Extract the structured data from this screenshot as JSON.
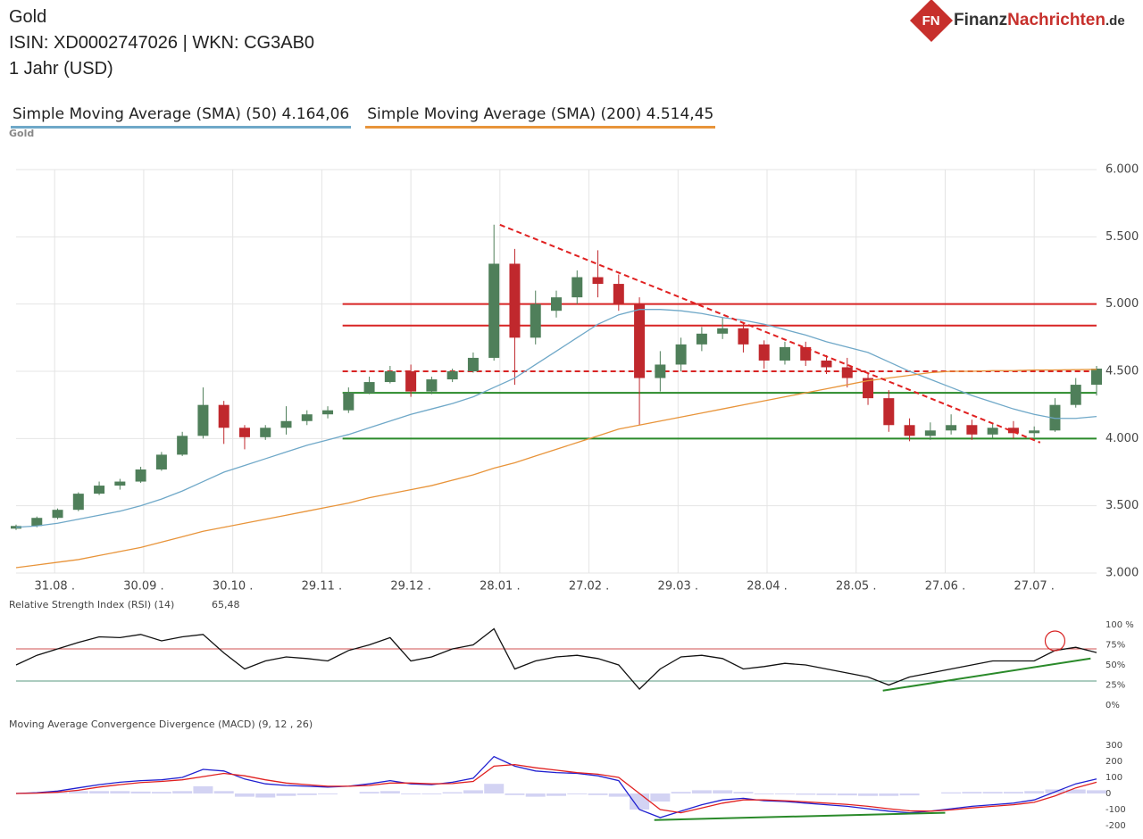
{
  "header": {
    "title": "Gold",
    "isin": "ISIN: XD0002747026  | WKN: CG3AB0",
    "period": "1 Jahr (USD)"
  },
  "logo": {
    "badge": "FN",
    "part1": "Finanz",
    "part2": "Nachrichten",
    "part3": ".de"
  },
  "chart_data": [
    {
      "type": "candlestick",
      "title": "Gold",
      "grid": true,
      "xlim": [
        0,
        364
      ],
      "xticks": [
        {
          "value": 13,
          "label": "31.08 ."
        },
        {
          "value": 43,
          "label": "30.09 ."
        },
        {
          "value": 73,
          "label": "30.10 ."
        },
        {
          "value": 103,
          "label": "29.11 ."
        },
        {
          "value": 133,
          "label": "29.12 ."
        },
        {
          "value": 163,
          "label": "28.01 ."
        },
        {
          "value": 193,
          "label": "27.02 ."
        },
        {
          "value": 223,
          "label": "29.03 ."
        },
        {
          "value": 253,
          "label": "28.04 ."
        },
        {
          "value": 283,
          "label": "28.05 ."
        },
        {
          "value": 313,
          "label": "27.06 ."
        },
        {
          "value": 343,
          "label": "27.07 ."
        }
      ],
      "ylim": [
        3000,
        6000
      ],
      "yticks": [
        {
          "value": 3000,
          "label": "3.000"
        },
        {
          "value": 3500,
          "label": "3.500"
        },
        {
          "value": 4000,
          "label": "4.000"
        },
        {
          "value": 4500,
          "label": "4.500"
        },
        {
          "value": 5000,
          "label": "5.000"
        },
        {
          "value": 5500,
          "label": "5.500"
        },
        {
          "value": 6000,
          "label": "6.000"
        }
      ],
      "up_color": "#4f7f5a",
      "down_color": "#c0282d",
      "x": [
        0,
        7,
        14,
        21,
        28,
        35,
        42,
        49,
        56,
        63,
        70,
        77,
        84,
        91,
        98,
        105,
        112,
        119,
        126,
        133,
        140,
        147,
        154,
        161,
        168,
        175,
        182,
        189,
        196,
        203,
        210,
        217,
        224,
        231,
        238,
        245,
        252,
        259,
        266,
        273,
        280,
        287,
        294,
        301,
        308,
        315,
        322,
        329,
        336,
        343,
        350,
        357,
        364
      ],
      "open": [
        3330,
        3350,
        3410,
        3470,
        3590,
        3650,
        3680,
        3770,
        3880,
        4020,
        4250,
        4080,
        4010,
        4080,
        4130,
        4180,
        4210,
        4340,
        4420,
        4500,
        4350,
        4440,
        4500,
        4600,
        5300,
        4750,
        4950,
        5050,
        5200,
        5150,
        5000,
        4450,
        4550,
        4700,
        4780,
        4820,
        4700,
        4580,
        4680,
        4580,
        4530,
        4450,
        4300,
        4100,
        4020,
        4060,
        4100,
        4030,
        4080,
        4040,
        4060,
        4250,
        4400
      ],
      "high": [
        3360,
        3420,
        3480,
        3600,
        3680,
        3700,
        3790,
        3900,
        4050,
        4380,
        4280,
        4100,
        4100,
        4240,
        4210,
        4240,
        4380,
        4460,
        4540,
        4550,
        4460,
        4520,
        4640,
        5590,
        5410,
        5100,
        5100,
        5250,
        5400,
        5220,
        5050,
        4650,
        4750,
        4830,
        4900,
        4860,
        4730,
        4720,
        4720,
        4620,
        4600,
        4480,
        4360,
        4150,
        4120,
        4180,
        4140,
        4110,
        4130,
        4090,
        4300,
        4450,
        4540
      ],
      "low": [
        3320,
        3340,
        3400,
        3460,
        3580,
        3620,
        3670,
        3760,
        3870,
        4000,
        3960,
        3920,
        3990,
        4030,
        4100,
        4150,
        4190,
        4330,
        4410,
        4310,
        4330,
        4420,
        4490,
        4580,
        4400,
        4700,
        4900,
        5000,
        5050,
        4950,
        4100,
        4350,
        4500,
        4650,
        4740,
        4640,
        4520,
        4550,
        4540,
        4480,
        4380,
        4250,
        4050,
        3980,
        3990,
        4030,
        3990,
        4000,
        4000,
        4010,
        4050,
        4230,
        4320
      ],
      "close": [
        3350,
        3410,
        3470,
        3590,
        3650,
        3680,
        3770,
        3880,
        4020,
        4250,
        4080,
        4010,
        4080,
        4130,
        4180,
        4210,
        4340,
        4420,
        4500,
        4350,
        4440,
        4500,
        4600,
        5300,
        4750,
        5000,
        5050,
        5200,
        5150,
        5000,
        4450,
        4550,
        4700,
        4780,
        4820,
        4700,
        4580,
        4680,
        4580,
        4530,
        4450,
        4300,
        4100,
        4020,
        4060,
        4100,
        4030,
        4080,
        4040,
        4060,
        4250,
        4400,
        4520
      ],
      "series": [
        {
          "name": "Simple Moving Average (SMA) (50)",
          "color": "#6fa8c8",
          "last_label": "4.164,06",
          "values": [
            3340,
            3350,
            3370,
            3400,
            3430,
            3460,
            3500,
            3550,
            3610,
            3680,
            3750,
            3800,
            3850,
            3900,
            3950,
            3990,
            4030,
            4080,
            4130,
            4180,
            4220,
            4260,
            4310,
            4380,
            4450,
            4550,
            4650,
            4750,
            4850,
            4920,
            4960,
            4960,
            4950,
            4930,
            4900,
            4880,
            4850,
            4810,
            4770,
            4720,
            4680,
            4640,
            4570,
            4500,
            4440,
            4380,
            4320,
            4270,
            4220,
            4180,
            4150,
            4150,
            4164.06
          ]
        },
        {
          "name": "Simple Moving Average (SMA) (200)",
          "color": "#e8943a",
          "last_label": "4.514,45",
          "values": [
            3040,
            3060,
            3080,
            3100,
            3130,
            3160,
            3190,
            3230,
            3270,
            3310,
            3340,
            3370,
            3400,
            3430,
            3460,
            3490,
            3520,
            3560,
            3590,
            3620,
            3650,
            3690,
            3730,
            3780,
            3820,
            3870,
            3920,
            3970,
            4020,
            4070,
            4100,
            4130,
            4160,
            4190,
            4220,
            4250,
            4280,
            4310,
            4340,
            4370,
            4400,
            4430,
            4450,
            4470,
            4490,
            4500,
            4500,
            4505,
            4505,
            4510,
            4510,
            4512,
            4514.45
          ]
        }
      ],
      "hlines": [
        {
          "value": 5000,
          "color": "#d82424"
        },
        {
          "value": 4840,
          "color": "#d82424"
        },
        {
          "value": 4500,
          "color": "#d82424",
          "dash": true
        },
        {
          "value": 4340,
          "color": "#2a8a2a"
        },
        {
          "value": 4000,
          "color": "#2a8a2a"
        }
      ],
      "trendlines": [
        {
          "x": [
            163,
            345
          ],
          "y": [
            5590,
            3970
          ],
          "color": "#e02020",
          "dash": true
        }
      ]
    },
    {
      "type": "line",
      "title": "Relative Strength Index (RSI) (14)",
      "ylim": [
        0,
        100
      ],
      "yticks": [
        {
          "value": 0,
          "label": "0%"
        },
        {
          "value": 25,
          "label": "25%"
        },
        {
          "value": 50,
          "label": "50%"
        },
        {
          "value": 75,
          "label": "75%"
        },
        {
          "value": 100,
          "label": "100 %"
        }
      ],
      "series": [
        {
          "name": "RSI",
          "color": "#111111",
          "last_label": "65,48",
          "values": [
            50,
            62,
            70,
            78,
            85,
            84,
            88,
            80,
            85,
            88,
            65,
            45,
            55,
            60,
            58,
            55,
            68,
            75,
            84,
            55,
            60,
            70,
            75,
            95,
            45,
            55,
            60,
            62,
            58,
            50,
            20,
            45,
            60,
            62,
            58,
            45,
            48,
            52,
            50,
            45,
            40,
            35,
            25,
            35,
            40,
            45,
            50,
            55,
            55,
            55,
            68,
            72,
            65.48
          ]
        }
      ],
      "hlines": [
        {
          "value": 70,
          "color": "#d05050"
        },
        {
          "value": 30,
          "color": "#5a9a80"
        }
      ],
      "trendlines": [
        {
          "x": [
            292,
            362
          ],
          "y": [
            18,
            58
          ],
          "color": "#2a8a2a"
        }
      ],
      "circles": [
        {
          "x": 350,
          "y": 80,
          "color": "#d82424"
        }
      ]
    },
    {
      "type": "line",
      "title": "Moving Average Convergence Divergence (MACD) (9, 12 , 26)",
      "ylim": [
        -200,
        300
      ],
      "yticks": [
        -200,
        -100,
        0,
        100,
        200,
        300
      ],
      "series": [
        {
          "name": "Histogram",
          "color": "#c8c8f0",
          "style": "bar",
          "values": [
            0,
            3,
            7,
            15,
            15,
            15,
            12,
            10,
            15,
            45,
            15,
            -20,
            -25,
            -15,
            -10,
            -5,
            0,
            10,
            15,
            -5,
            -5,
            8,
            20,
            60,
            -10,
            -20,
            -15,
            -5,
            -10,
            -20,
            -100,
            -50,
            10,
            20,
            20,
            10,
            -5,
            -5,
            -8,
            -10,
            -12,
            -15,
            -15,
            -12,
            0,
            7,
            10,
            10,
            10,
            15,
            25,
            25,
            20
          ]
        },
        {
          "name": "MACD",
          "color": "#2020d0",
          "values": [
            0,
            5,
            15,
            35,
            55,
            70,
            80,
            85,
            100,
            150,
            140,
            90,
            60,
            50,
            45,
            40,
            45,
            60,
            80,
            60,
            55,
            70,
            95,
            230,
            170,
            140,
            130,
            125,
            110,
            80,
            -100,
            -150,
            -110,
            -70,
            -40,
            -30,
            -45,
            -50,
            -60,
            -70,
            -80,
            -95,
            -110,
            -120,
            -110,
            -95,
            -80,
            -70,
            -60,
            -40,
            10,
            60,
            90
          ]
        },
        {
          "name": "Signal",
          "color": "#e02020",
          "values": [
            0,
            2,
            8,
            20,
            40,
            55,
            68,
            75,
            85,
            105,
            125,
            110,
            85,
            65,
            55,
            45,
            45,
            50,
            65,
            65,
            60,
            62,
            75,
            170,
            180,
            160,
            145,
            130,
            120,
            100,
            0,
            -100,
            -120,
            -90,
            -60,
            -40,
            -40,
            -45,
            -52,
            -60,
            -68,
            -80,
            -95,
            -108,
            -110,
            -102,
            -90,
            -80,
            -70,
            -55,
            -15,
            35,
            70
          ]
        }
      ],
      "trendlines": [
        {
          "x": [
            215,
            313
          ],
          "y": [
            -165,
            -120
          ],
          "color": "#2a8a2a"
        }
      ]
    }
  ]
}
